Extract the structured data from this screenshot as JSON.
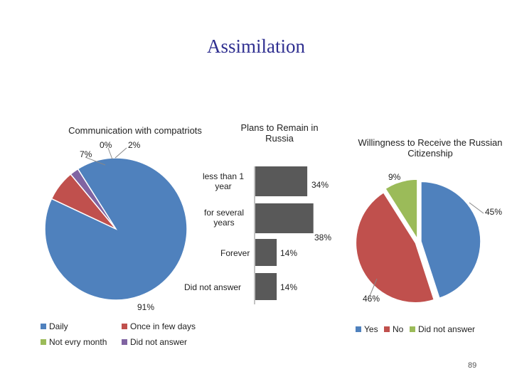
{
  "slide": {
    "title": "Assimilation",
    "page_number": "89"
  },
  "chart_data": [
    {
      "type": "pie",
      "title": "Communication with compatriots",
      "categories": [
        "Daily",
        "Once in few days",
        "Not evry month",
        "Did not answer"
      ],
      "values": [
        91,
        7,
        0,
        2
      ],
      "labels": [
        "91%",
        "7%",
        "0%",
        "2%"
      ],
      "colors": [
        "#4f81bd",
        "#c0504d",
        "#9bbb59",
        "#8064a2"
      ],
      "legend_position": "bottom"
    },
    {
      "type": "bar",
      "orientation": "horizontal",
      "title": "Plans to Remain in Russia",
      "categories": [
        "less than  1 year",
        "for several years",
        "Forever",
        "Did not answer"
      ],
      "values": [
        34,
        38,
        14,
        14
      ],
      "labels": [
        "34%",
        "38%",
        "14%",
        "14%"
      ],
      "color": "#595959"
    },
    {
      "type": "pie",
      "title": "Willingness to Receive the Russian Citizenship",
      "categories": [
        "Yes",
        "No",
        "Did not answer"
      ],
      "values": [
        45,
        46,
        9
      ],
      "labels": [
        "45%",
        "46%",
        "9%"
      ],
      "colors": [
        "#4f81bd",
        "#c0504d",
        "#9bbb59"
      ],
      "legend_position": "bottom"
    }
  ]
}
